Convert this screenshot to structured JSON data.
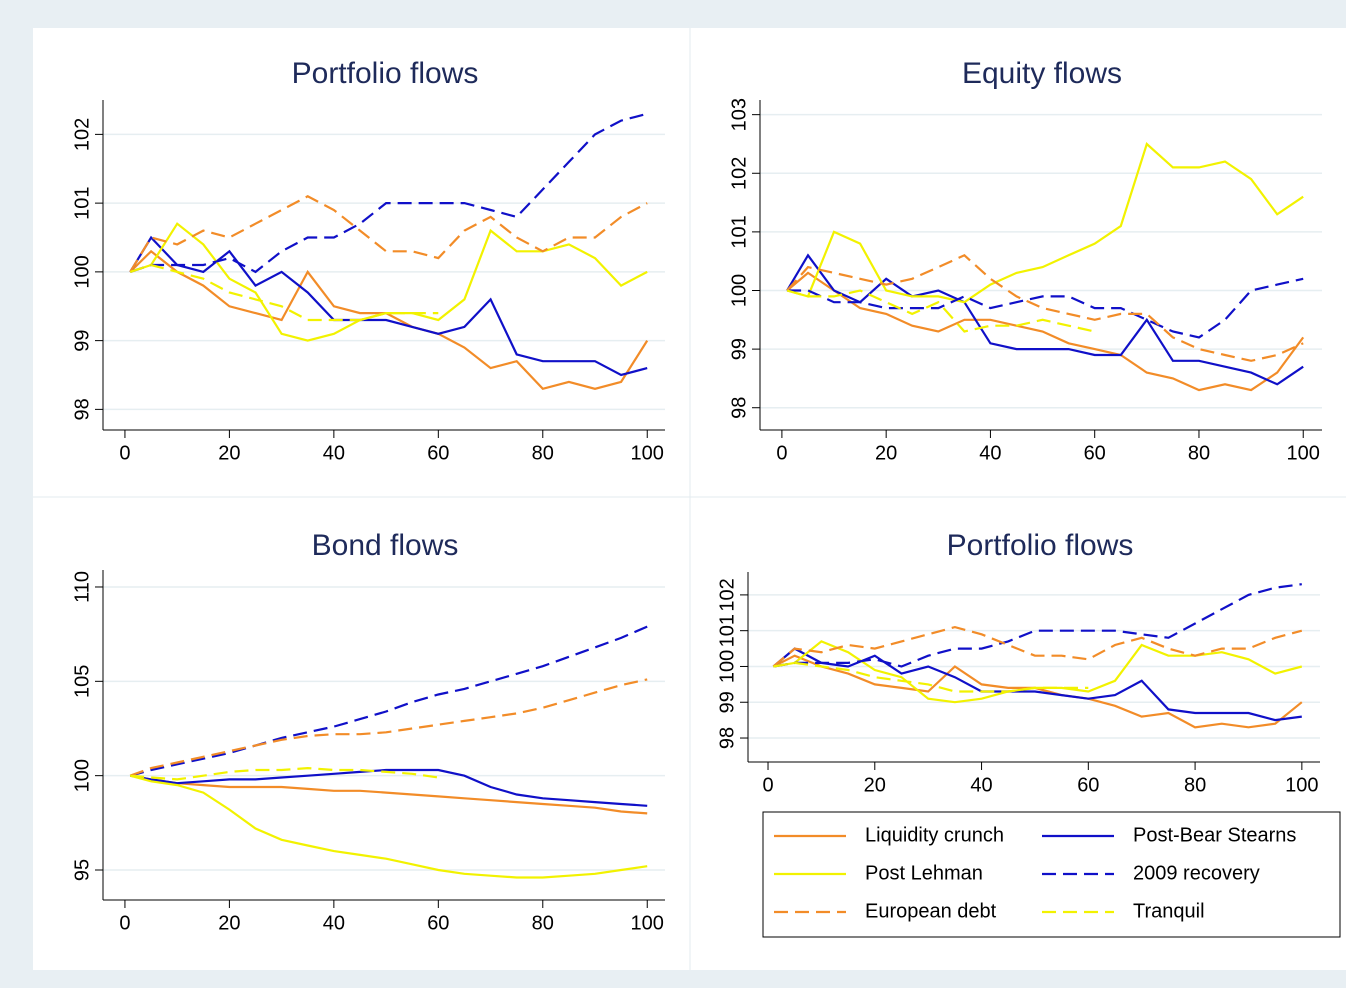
{
  "chart_data": [
    {
      "type": "line",
      "title": "Portfolio flows",
      "x": [
        1,
        5,
        10,
        15,
        20,
        25,
        30,
        35,
        40,
        45,
        50,
        55,
        60,
        65,
        70,
        75,
        80,
        85,
        90,
        95,
        100
      ],
      "xlim": [
        -4.2,
        103.4
      ],
      "ylim": [
        97.7,
        102.5
      ],
      "xticks": [
        0,
        20,
        40,
        60,
        80,
        100
      ],
      "yticks": [
        98,
        99,
        100,
        101,
        102
      ],
      "grid": true,
      "series": [
        {
          "name": "Liquidity crunch",
          "color": "#f28c28",
          "style": "solid",
          "values": [
            100,
            100.3,
            100.0,
            99.8,
            99.5,
            99.4,
            99.3,
            100.0,
            99.5,
            99.4,
            99.4,
            99.2,
            99.1,
            98.9,
            98.6,
            98.7,
            98.3,
            98.4,
            98.3,
            98.4,
            99.0
          ]
        },
        {
          "name": "Post-Bear Stearns",
          "color": "#1010c8",
          "style": "solid",
          "values": [
            100,
            100.5,
            100.1,
            100.0,
            100.3,
            99.8,
            100.0,
            99.7,
            99.3,
            99.3,
            99.3,
            99.2,
            99.1,
            99.2,
            99.6,
            98.8,
            98.7,
            98.7,
            98.7,
            98.5,
            98.6
          ]
        },
        {
          "name": "Post Lehman",
          "color": "#f2f200",
          "style": "solid",
          "values": [
            100,
            100.1,
            100.7,
            100.4,
            99.9,
            99.7,
            99.1,
            99.0,
            99.1,
            99.3,
            99.4,
            99.4,
            99.3,
            99.6,
            100.6,
            100.3,
            100.3,
            100.4,
            100.2,
            99.8,
            100.0
          ]
        },
        {
          "name": "2009 recovery",
          "color": "#1010c8",
          "style": "dashed",
          "values": [
            100,
            100.1,
            100.1,
            100.1,
            100.2,
            100.0,
            100.3,
            100.5,
            100.5,
            100.7,
            101.0,
            101.0,
            101.0,
            101.0,
            100.9,
            100.8,
            101.2,
            101.6,
            102.0,
            102.2,
            102.3
          ]
        },
        {
          "name": "European debt",
          "color": "#f28c28",
          "style": "dashed",
          "values": [
            100,
            100.5,
            100.4,
            100.6,
            100.5,
            100.7,
            100.9,
            101.1,
            100.9,
            100.6,
            100.3,
            100.3,
            100.2,
            100.6,
            100.8,
            100.5,
            100.3,
            100.5,
            100.5,
            100.8,
            101.0
          ]
        },
        {
          "name": "Tranquil",
          "color": "#f2f200",
          "style": "dashed",
          "values": [
            100,
            100.1,
            100.0,
            99.9,
            99.7,
            99.6,
            99.5,
            99.3,
            99.3,
            99.3,
            99.4,
            99.4,
            99.4,
            null,
            null,
            null,
            null,
            null,
            null,
            null,
            null
          ]
        }
      ]
    },
    {
      "type": "line",
      "title": "Equity flows",
      "x": [
        1,
        5,
        10,
        15,
        20,
        25,
        30,
        35,
        40,
        45,
        50,
        55,
        60,
        65,
        70,
        75,
        80,
        85,
        90,
        95,
        100
      ],
      "xlim": [
        -4.2,
        103.6
      ],
      "ylim": [
        97.62,
        103.25
      ],
      "xticks": [
        0,
        20,
        40,
        60,
        80,
        100
      ],
      "yticks": [
        98,
        99,
        100,
        101,
        102,
        103
      ],
      "grid": true,
      "series": [
        {
          "name": "Liquidity crunch",
          "color": "#f28c28",
          "style": "solid",
          "values": [
            100,
            100.3,
            100.0,
            99.7,
            99.6,
            99.4,
            99.3,
            99.5,
            99.5,
            99.4,
            99.3,
            99.1,
            99.0,
            98.9,
            98.6,
            98.5,
            98.3,
            98.4,
            98.3,
            98.6,
            99.2
          ]
        },
        {
          "name": "Post-Bear Stearns",
          "color": "#1010c8",
          "style": "solid",
          "values": [
            100,
            100.6,
            100.0,
            99.8,
            100.2,
            99.9,
            100.0,
            99.8,
            99.1,
            99.0,
            99.0,
            99.0,
            98.9,
            98.9,
            99.5,
            98.8,
            98.8,
            98.7,
            98.6,
            98.4,
            98.7
          ]
        },
        {
          "name": "Post Lehman",
          "color": "#f2f200",
          "style": "solid",
          "values": [
            100,
            99.9,
            101.0,
            100.8,
            100.0,
            99.9,
            99.9,
            99.8,
            100.1,
            100.3,
            100.4,
            100.6,
            100.8,
            101.1,
            102.5,
            102.1,
            102.1,
            102.2,
            101.9,
            101.3,
            101.6
          ]
        },
        {
          "name": "2009 recovery",
          "color": "#1010c8",
          "style": "dashed",
          "values": [
            100,
            100.0,
            99.8,
            99.8,
            99.7,
            99.7,
            99.7,
            99.9,
            99.7,
            99.8,
            99.9,
            99.9,
            99.7,
            99.7,
            99.5,
            99.3,
            99.2,
            99.5,
            100.0,
            100.1,
            100.2
          ]
        },
        {
          "name": "European debt",
          "color": "#f28c28",
          "style": "dashed",
          "values": [
            100,
            100.4,
            100.3,
            100.2,
            100.1,
            100.2,
            100.4,
            100.6,
            100.2,
            99.9,
            99.7,
            99.6,
            99.5,
            99.6,
            99.6,
            99.2,
            99.0,
            98.9,
            98.8,
            98.9,
            99.1
          ]
        },
        {
          "name": "Tranquil",
          "color": "#f2f200",
          "style": "dashed",
          "values": [
            100,
            99.9,
            99.9,
            100.0,
            99.8,
            99.6,
            99.8,
            99.3,
            99.4,
            99.4,
            99.5,
            99.4,
            99.3,
            null,
            null,
            null,
            null,
            null,
            null,
            null,
            null
          ]
        }
      ]
    },
    {
      "type": "line",
      "title": "Bond flows",
      "x": [
        1,
        5,
        10,
        15,
        20,
        25,
        30,
        35,
        40,
        45,
        50,
        55,
        60,
        65,
        70,
        75,
        80,
        85,
        90,
        95,
        100
      ],
      "xlim": [
        -4.2,
        103.4
      ],
      "ylim": [
        93.41,
        110.9
      ],
      "xticks": [
        0,
        20,
        40,
        60,
        80,
        100
      ],
      "yticks": [
        95,
        100,
        105,
        110
      ],
      "grid": true,
      "series": [
        {
          "name": "Liquidity crunch",
          "color": "#f28c28",
          "style": "solid",
          "values": [
            100,
            99.8,
            99.6,
            99.5,
            99.4,
            99.4,
            99.4,
            99.3,
            99.2,
            99.2,
            99.1,
            99.0,
            98.9,
            98.8,
            98.7,
            98.6,
            98.5,
            98.4,
            98.3,
            98.1,
            98.0
          ]
        },
        {
          "name": "Post-Bear Stearns",
          "color": "#1010c8",
          "style": "solid",
          "values": [
            100,
            99.8,
            99.6,
            99.7,
            99.8,
            99.8,
            99.9,
            100.0,
            100.1,
            100.2,
            100.3,
            100.3,
            100.3,
            100.0,
            99.4,
            99.0,
            98.8,
            98.7,
            98.6,
            98.5,
            98.4
          ]
        },
        {
          "name": "Post Lehman",
          "color": "#f2f200",
          "style": "solid",
          "values": [
            100,
            99.7,
            99.5,
            99.1,
            98.2,
            97.2,
            96.6,
            96.3,
            96.0,
            95.8,
            95.6,
            95.3,
            95.0,
            94.8,
            94.7,
            94.6,
            94.6,
            94.7,
            94.8,
            95.0,
            95.2
          ]
        },
        {
          "name": "2009 recovery",
          "color": "#1010c8",
          "style": "dashed",
          "values": [
            100,
            100.3,
            100.6,
            100.9,
            101.2,
            101.6,
            102.0,
            102.3,
            102.6,
            103.0,
            103.4,
            103.9,
            104.3,
            104.6,
            105.0,
            105.4,
            105.8,
            106.3,
            106.8,
            107.3,
            107.9
          ]
        },
        {
          "name": "European debt",
          "color": "#f28c28",
          "style": "dashed",
          "values": [
            100,
            100.4,
            100.7,
            101.0,
            101.3,
            101.6,
            101.9,
            102.1,
            102.2,
            102.2,
            102.3,
            102.5,
            102.7,
            102.9,
            103.1,
            103.3,
            103.6,
            104.0,
            104.4,
            104.8,
            105.1
          ]
        },
        {
          "name": "Tranquil",
          "color": "#f2f200",
          "style": "dashed",
          "values": [
            100,
            99.9,
            99.8,
            100.0,
            100.2,
            100.3,
            100.3,
            100.4,
            100.3,
            100.3,
            100.2,
            100.1,
            99.9,
            null,
            null,
            null,
            null,
            null,
            null,
            null,
            null
          ]
        }
      ]
    },
    {
      "type": "line",
      "title": "Portfolio flows",
      "x": [
        1,
        5,
        10,
        15,
        20,
        25,
        30,
        35,
        40,
        45,
        50,
        55,
        60,
        65,
        70,
        75,
        80,
        85,
        90,
        95,
        100
      ],
      "xlim": [
        -3.75,
        103.4
      ],
      "ylim": [
        97.33,
        102.64
      ],
      "xticks": [
        0,
        20,
        40,
        60,
        80,
        100
      ],
      "yticks": [
        98,
        99,
        100,
        101,
        102
      ],
      "grid": true,
      "legend": "below",
      "series": [
        {
          "name": "Liquidity crunch",
          "color": "#f28c28",
          "style": "solid",
          "values": [
            100,
            100.3,
            100.0,
            99.8,
            99.5,
            99.4,
            99.3,
            100.0,
            99.5,
            99.4,
            99.4,
            99.2,
            99.1,
            98.9,
            98.6,
            98.7,
            98.3,
            98.4,
            98.3,
            98.4,
            99.0
          ]
        },
        {
          "name": "Post-Bear Stearns",
          "color": "#1010c8",
          "style": "solid",
          "values": [
            100,
            100.5,
            100.1,
            100.0,
            100.3,
            99.8,
            100.0,
            99.7,
            99.3,
            99.3,
            99.3,
            99.2,
            99.1,
            99.2,
            99.6,
            98.8,
            98.7,
            98.7,
            98.7,
            98.5,
            98.6
          ]
        },
        {
          "name": "Post Lehman",
          "color": "#f2f200",
          "style": "solid",
          "values": [
            100,
            100.1,
            100.7,
            100.4,
            99.9,
            99.7,
            99.1,
            99.0,
            99.1,
            99.3,
            99.4,
            99.4,
            99.3,
            99.6,
            100.6,
            100.3,
            100.3,
            100.4,
            100.2,
            99.8,
            100.0
          ]
        },
        {
          "name": "2009 recovery",
          "color": "#1010c8",
          "style": "dashed",
          "values": [
            100,
            100.1,
            100.1,
            100.1,
            100.2,
            100.0,
            100.3,
            100.5,
            100.5,
            100.7,
            101.0,
            101.0,
            101.0,
            101.0,
            100.9,
            100.8,
            101.2,
            101.6,
            102.0,
            102.2,
            102.3
          ]
        },
        {
          "name": "European debt",
          "color": "#f28c28",
          "style": "dashed",
          "values": [
            100,
            100.5,
            100.4,
            100.6,
            100.5,
            100.7,
            100.9,
            101.1,
            100.9,
            100.6,
            100.3,
            100.3,
            100.2,
            100.6,
            100.8,
            100.5,
            100.3,
            100.5,
            100.5,
            100.8,
            101.0
          ]
        },
        {
          "name": "Tranquil",
          "color": "#f2f200",
          "style": "dashed",
          "values": [
            100,
            100.1,
            100.0,
            99.9,
            99.7,
            99.6,
            99.5,
            99.3,
            99.3,
            99.3,
            99.4,
            99.4,
            99.4,
            null,
            null,
            null,
            null,
            null,
            null,
            null,
            null
          ]
        }
      ]
    }
  ]
}
